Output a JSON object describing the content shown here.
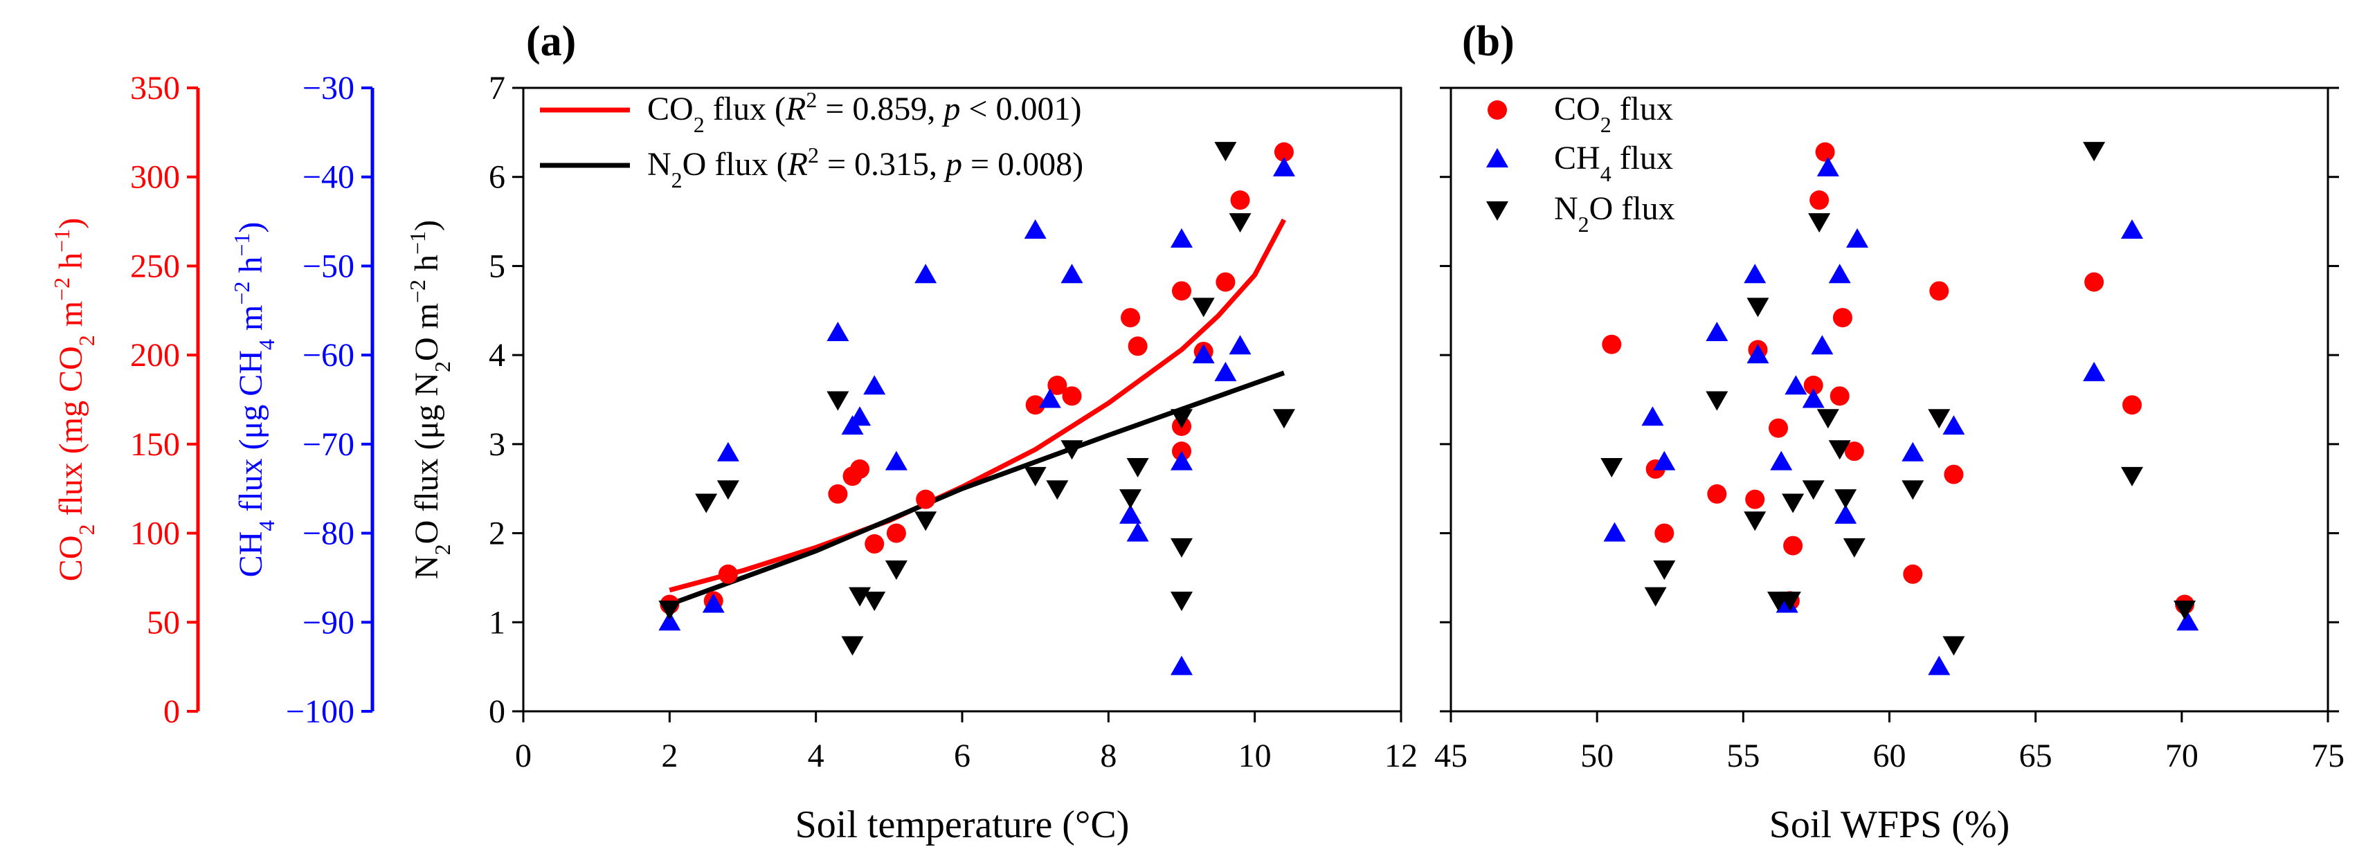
{
  "colors": {
    "co2": "#ff0000",
    "ch4": "#0000ff",
    "n2o": "#000000"
  },
  "chart_data": [
    {
      "panel": "(a)",
      "type": "scatter",
      "xlabel": "Soil temperature (°C)",
      "xlim": [
        0,
        12
      ],
      "xticks": [
        "0",
        "2",
        "4",
        "6",
        "8",
        "10",
        "12"
      ],
      "axes": {
        "n2o": {
          "label": [
            "N",
            "2",
            "O flux (μg N",
            "2",
            "O m",
            "−2",
            " h",
            "−1",
            ")"
          ],
          "lim": [
            0,
            7
          ],
          "ticks": [
            "0",
            "1",
            "2",
            "3",
            "4",
            "5",
            "6",
            "7"
          ]
        },
        "ch4": {
          "label": [
            "CH",
            "4",
            " flux (μg CH",
            "4",
            " m",
            "−2",
            " h",
            "−1",
            ")"
          ],
          "lim": [
            -100,
            -30
          ],
          "ticks": [
            "−100",
            "−90",
            "−80",
            "−70",
            "−60",
            "−50",
            "−40",
            "−30"
          ]
        },
        "co2": {
          "label": [
            "CO",
            "2",
            " flux (mg CO",
            "2",
            " m",
            "−2",
            " h",
            "−1",
            ")"
          ],
          "lim": [
            0,
            350
          ],
          "ticks": [
            "0",
            "50",
            "100",
            "150",
            "200",
            "250",
            "300",
            "350"
          ]
        }
      },
      "legend": [
        {
          "series": "CO2 fit",
          "parts": [
            "CO",
            "2",
            " flux (",
            "R",
            "2",
            " = 0.859, ",
            "p",
            " < 0.001)"
          ]
        },
        {
          "series": "N2O fit",
          "parts": [
            "N",
            "2",
            "O flux (",
            "R",
            "2",
            " = 0.315, ",
            "p",
            " = 0.008)"
          ]
        }
      ],
      "series": {
        "co2": {
          "name": "CO2 flux",
          "marker": "circle",
          "points": [
            [
              2.0,
              60
            ],
            [
              2.6,
              62
            ],
            [
              2.8,
              77
            ],
            [
              4.3,
              122
            ],
            [
              4.5,
              132
            ],
            [
              4.6,
              136
            ],
            [
              4.8,
              94
            ],
            [
              5.1,
              100
            ],
            [
              5.5,
              119
            ],
            [
              7.0,
              172
            ],
            [
              7.3,
              183
            ],
            [
              7.5,
              177
            ],
            [
              8.3,
              221
            ],
            [
              8.4,
              205
            ],
            [
              9.0,
              236
            ],
            [
              9.0,
              160
            ],
            [
              9.0,
              146
            ],
            [
              9.3,
              202
            ],
            [
              9.6,
              241
            ],
            [
              9.8,
              287
            ],
            [
              10.4,
              314
            ]
          ]
        },
        "ch4": {
          "name": "CH4 flux",
          "marker": "triangle-up",
          "points": [
            [
              2.0,
              -90
            ],
            [
              2.6,
              -88
            ],
            [
              2.8,
              -71
            ],
            [
              4.3,
              -57.5
            ],
            [
              4.5,
              -68
            ],
            [
              4.6,
              -67
            ],
            [
              4.8,
              -63.5
            ],
            [
              5.1,
              -72
            ],
            [
              5.5,
              -51
            ],
            [
              7.0,
              -46
            ],
            [
              7.2,
              -65
            ],
            [
              7.5,
              -51
            ],
            [
              8.3,
              -78
            ],
            [
              8.4,
              -80
            ],
            [
              9.0,
              -95
            ],
            [
              9.0,
              -72
            ],
            [
              9.0,
              -47
            ],
            [
              9.3,
              -60
            ],
            [
              9.6,
              -62
            ],
            [
              9.8,
              -59
            ],
            [
              10.4,
              -39
            ]
          ]
        },
        "n2o": {
          "name": "N2O flux",
          "marker": "triangle-down",
          "points": [
            [
              2.0,
              1.15
            ],
            [
              2.5,
              2.35
            ],
            [
              2.8,
              2.5
            ],
            [
              4.3,
              3.5
            ],
            [
              4.5,
              0.75
            ],
            [
              4.6,
              1.3
            ],
            [
              4.8,
              1.25
            ],
            [
              5.1,
              1.6
            ],
            [
              5.5,
              2.15
            ],
            [
              7.0,
              2.65
            ],
            [
              7.3,
              2.5
            ],
            [
              7.5,
              2.95
            ],
            [
              8.3,
              2.4
            ],
            [
              8.4,
              2.75
            ],
            [
              9.0,
              3.3
            ],
            [
              9.0,
              1.85
            ],
            [
              9.0,
              1.25
            ],
            [
              9.3,
              4.55
            ],
            [
              9.6,
              6.3
            ],
            [
              9.8,
              5.5
            ],
            [
              10.4,
              3.3
            ]
          ]
        }
      },
      "fits": {
        "co2": {
          "points": [
            [
              2.0,
              68
            ],
            [
              3.0,
              79
            ],
            [
              4.0,
              92
            ],
            [
              5.0,
              107
            ],
            [
              6.0,
              126
            ],
            [
              7.0,
              147
            ],
            [
              8.0,
              173
            ],
            [
              9.0,
              203
            ],
            [
              9.5,
              222
            ],
            [
              10.0,
              245
            ],
            [
              10.4,
              276
            ]
          ]
        },
        "n2o": {
          "points": [
            [
              2.0,
              1.2
            ],
            [
              4.0,
              1.8
            ],
            [
              6.0,
              2.5
            ],
            [
              8.0,
              3.1
            ],
            [
              10.4,
              3.8
            ]
          ]
        }
      }
    },
    {
      "panel": "(b)",
      "type": "scatter",
      "xlabel": "Soil WFPS (%)",
      "xlim": [
        45,
        75
      ],
      "xticks": [
        "45",
        "50",
        "55",
        "60",
        "65",
        "70",
        "75"
      ],
      "ylim_left": [
        0,
        7
      ],
      "legend": [
        {
          "series": "co2",
          "marker": "circle",
          "parts": [
            "CO",
            "2",
            " flux"
          ]
        },
        {
          "series": "ch4",
          "marker": "triangle-up",
          "parts": [
            "CH",
            "4",
            " flux"
          ]
        },
        {
          "series": "n2o",
          "marker": "triangle-down",
          "parts": [
            "N",
            "2",
            "O flux"
          ]
        }
      ],
      "series": {
        "co2": {
          "name": "CO2 flux",
          "marker": "circle",
          "points": [
            [
              50.5,
              206
            ],
            [
              52.0,
              136
            ],
            [
              52.3,
              100
            ],
            [
              54.1,
              122
            ],
            [
              55.4,
              119
            ],
            [
              55.5,
              203
            ],
            [
              56.2,
              159
            ],
            [
              56.6,
              62
            ],
            [
              56.7,
              93
            ],
            [
              57.4,
              183
            ],
            [
              57.6,
              287
            ],
            [
              57.8,
              314
            ],
            [
              58.3,
              177
            ],
            [
              58.4,
              221
            ],
            [
              58.8,
              146
            ],
            [
              60.8,
              77
            ],
            [
              61.7,
              236
            ],
            [
              62.2,
              133
            ],
            [
              67.0,
              241
            ],
            [
              68.3,
              172
            ],
            [
              70.1,
              60
            ]
          ]
        },
        "ch4": {
          "name": "CH4 flux",
          "marker": "triangle-up",
          "points": [
            [
              50.6,
              -80
            ],
            [
              51.9,
              -67
            ],
            [
              52.3,
              -72
            ],
            [
              54.1,
              -57.5
            ],
            [
              55.4,
              -51
            ],
            [
              55.5,
              -60
            ],
            [
              56.3,
              -72
            ],
            [
              56.5,
              -88
            ],
            [
              56.8,
              -63.5
            ],
            [
              57.4,
              -65
            ],
            [
              57.7,
              -59
            ],
            [
              57.9,
              -39
            ],
            [
              58.3,
              -51
            ],
            [
              58.5,
              -78
            ],
            [
              58.9,
              -47
            ],
            [
              60.8,
              -71
            ],
            [
              61.7,
              -95
            ],
            [
              62.2,
              -68
            ],
            [
              67.0,
              -62
            ],
            [
              68.3,
              -46
            ],
            [
              70.2,
              -90
            ]
          ]
        },
        "n2o": {
          "name": "N2O flux",
          "marker": "triangle-down",
          "points": [
            [
              50.5,
              2.75
            ],
            [
              52.0,
              1.3
            ],
            [
              52.3,
              1.6
            ],
            [
              54.1,
              3.5
            ],
            [
              55.4,
              2.15
            ],
            [
              55.5,
              4.55
            ],
            [
              56.2,
              1.25
            ],
            [
              56.6,
              1.25
            ],
            [
              56.7,
              2.35
            ],
            [
              57.4,
              2.5
            ],
            [
              57.6,
              5.5
            ],
            [
              57.9,
              3.3
            ],
            [
              58.3,
              2.95
            ],
            [
              58.5,
              2.4
            ],
            [
              58.8,
              1.85
            ],
            [
              60.8,
              2.5
            ],
            [
              61.7,
              3.3
            ],
            [
              62.2,
              0.75
            ],
            [
              67.0,
              6.3
            ],
            [
              68.3,
              2.65
            ],
            [
              70.1,
              1.15
            ]
          ]
        }
      }
    }
  ]
}
